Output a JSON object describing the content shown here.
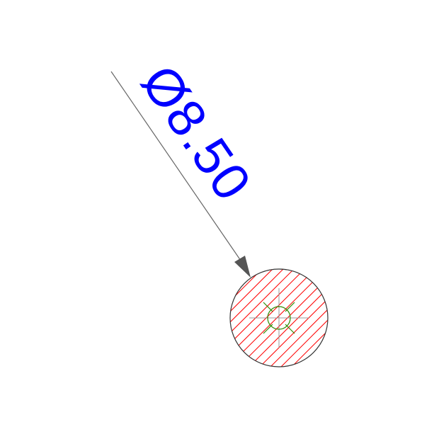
{
  "dimension": {
    "label": "Ø8.50",
    "text_color": "#0000ff",
    "leader_color": "#666666"
  },
  "hole": {
    "outline_color": "#333333",
    "hatch_color": "#ff0000",
    "center_mark_color": "#999999",
    "center_symbol_color": "#2e8b00"
  }
}
